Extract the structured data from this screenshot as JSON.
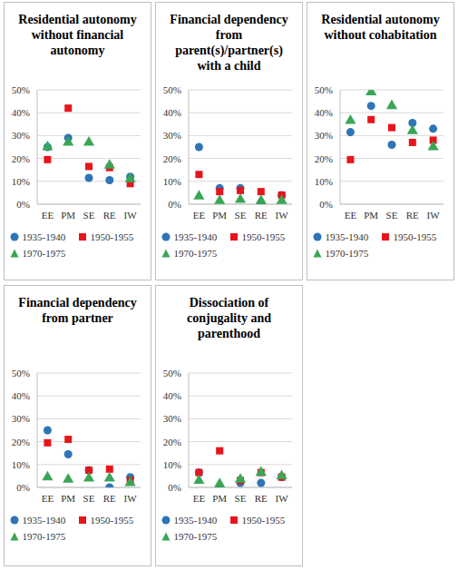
{
  "chart_data": [
    {
      "type": "scatter",
      "title": "Residential autonomy without financial autonomy",
      "categories": [
        "EE",
        "PM",
        "SE",
        "RE",
        "IW"
      ],
      "ylim": [
        0,
        50
      ],
      "yticks": [
        {
          "value": 0,
          "label": "0%"
        },
        {
          "value": 10,
          "label": "10%"
        },
        {
          "value": 20,
          "label": "20%"
        },
        {
          "value": 30,
          "label": "30%"
        },
        {
          "value": 40,
          "label": "40%"
        },
        {
          "value": 50,
          "label": "50%"
        }
      ],
      "grid": true,
      "legend": "bottom",
      "series": [
        {
          "name": "1935-1940",
          "color": "#2e75b6",
          "marker": "circle",
          "values": [
            25,
            29,
            11.5,
            10.5,
            12
          ]
        },
        {
          "name": "1950-1955",
          "color": "#e8141b",
          "marker": "square",
          "values": [
            19.5,
            42,
            16.5,
            16,
            9
          ]
        },
        {
          "name": "1970-1975",
          "color": "#3aa655",
          "marker": "triangle",
          "values": [
            25,
            27,
            27,
            17,
            11
          ]
        }
      ]
    },
    {
      "type": "scatter",
      "title": "Financial dependency from parent(s)/partner(s) with a child",
      "categories": [
        "EE",
        "PM",
        "SE",
        "RE",
        "IW"
      ],
      "ylim": [
        0,
        50
      ],
      "yticks": [
        {
          "value": 0,
          "label": "0%"
        },
        {
          "value": 10,
          "label": "10%"
        },
        {
          "value": 20,
          "label": "20%"
        },
        {
          "value": 30,
          "label": "30%"
        },
        {
          "value": 40,
          "label": "40%"
        },
        {
          "value": 50,
          "label": "50%"
        }
      ],
      "grid": true,
      "legend": "bottom",
      "series": [
        {
          "name": "1935-1940",
          "color": "#2e75b6",
          "marker": "circle",
          "values": [
            25,
            7,
            7,
            0.5,
            4
          ]
        },
        {
          "name": "1950-1955",
          "color": "#e8141b",
          "marker": "square",
          "values": [
            13,
            5.5,
            6,
            5.5,
            4
          ]
        },
        {
          "name": "1970-1975",
          "color": "#3aa655",
          "marker": "triangle",
          "values": [
            3.5,
            1.5,
            2,
            1.5,
            1.5
          ]
        }
      ]
    },
    {
      "type": "scatter",
      "title": "Residential autonomy without cohabitation",
      "categories": [
        "EE",
        "PM",
        "SE",
        "RE",
        "IW"
      ],
      "ylim": [
        0,
        50
      ],
      "yticks": [
        {
          "value": 0,
          "label": "0%"
        },
        {
          "value": 10,
          "label": "10%"
        },
        {
          "value": 20,
          "label": "20%"
        },
        {
          "value": 30,
          "label": "30%"
        },
        {
          "value": 40,
          "label": "40%"
        },
        {
          "value": 50,
          "label": "50%"
        }
      ],
      "grid": true,
      "legend": "bottom",
      "series": [
        {
          "name": "1935-1940",
          "color": "#2e75b6",
          "marker": "circle",
          "values": [
            31.5,
            43,
            26,
            35.5,
            33
          ]
        },
        {
          "name": "1950-1955",
          "color": "#e8141b",
          "marker": "square",
          "values": [
            19.5,
            37,
            33.5,
            27,
            28
          ]
        },
        {
          "name": "1970-1975",
          "color": "#3aa655",
          "marker": "triangle",
          "values": [
            36.5,
            49,
            43,
            32,
            25
          ]
        }
      ]
    },
    {
      "type": "scatter",
      "title": "Financial dependency from partner",
      "categories": [
        "EE",
        "PM",
        "SE",
        "RE",
        "IW"
      ],
      "ylim": [
        0,
        50
      ],
      "yticks": [
        {
          "value": 0,
          "label": "0%"
        },
        {
          "value": 10,
          "label": "10%"
        },
        {
          "value": 20,
          "label": "20%"
        },
        {
          "value": 30,
          "label": "30%"
        },
        {
          "value": 40,
          "label": "40%"
        },
        {
          "value": 50,
          "label": "50%"
        }
      ],
      "grid": true,
      "legend": "bottom",
      "series": [
        {
          "name": "1935-1940",
          "color": "#2e75b6",
          "marker": "circle",
          "values": [
            25,
            14.5,
            7.5,
            0,
            4.5
          ]
        },
        {
          "name": "1950-1955",
          "color": "#e8141b",
          "marker": "square",
          "values": [
            19.5,
            21,
            7.5,
            8,
            3
          ]
        },
        {
          "name": "1970-1975",
          "color": "#3aa655",
          "marker": "triangle",
          "values": [
            4.5,
            3.5,
            4,
            4,
            2
          ]
        }
      ]
    },
    {
      "type": "scatter",
      "title": "Dissociation of conjugality and parenthood",
      "categories": [
        "EE",
        "PM",
        "SE",
        "RE",
        "IW"
      ],
      "ylim": [
        0,
        50
      ],
      "yticks": [
        {
          "value": 0,
          "label": "0%"
        },
        {
          "value": 10,
          "label": "10%"
        },
        {
          "value": 20,
          "label": "20%"
        },
        {
          "value": 30,
          "label": "30%"
        },
        {
          "value": 40,
          "label": "40%"
        },
        {
          "value": 50,
          "label": "50%"
        }
      ],
      "grid": true,
      "legend": "bottom",
      "series": [
        {
          "name": "1935-1940",
          "color": "#2e75b6",
          "marker": "circle",
          "values": [
            6.5,
            0,
            2,
            2,
            4.5
          ]
        },
        {
          "name": "1950-1955",
          "color": "#e8141b",
          "marker": "square",
          "values": [
            6.5,
            16,
            3,
            6.5,
            4.5
          ]
        },
        {
          "name": "1970-1975",
          "color": "#3aa655",
          "marker": "triangle",
          "values": [
            3,
            1.5,
            3.5,
            6.5,
            5
          ]
        }
      ]
    }
  ]
}
